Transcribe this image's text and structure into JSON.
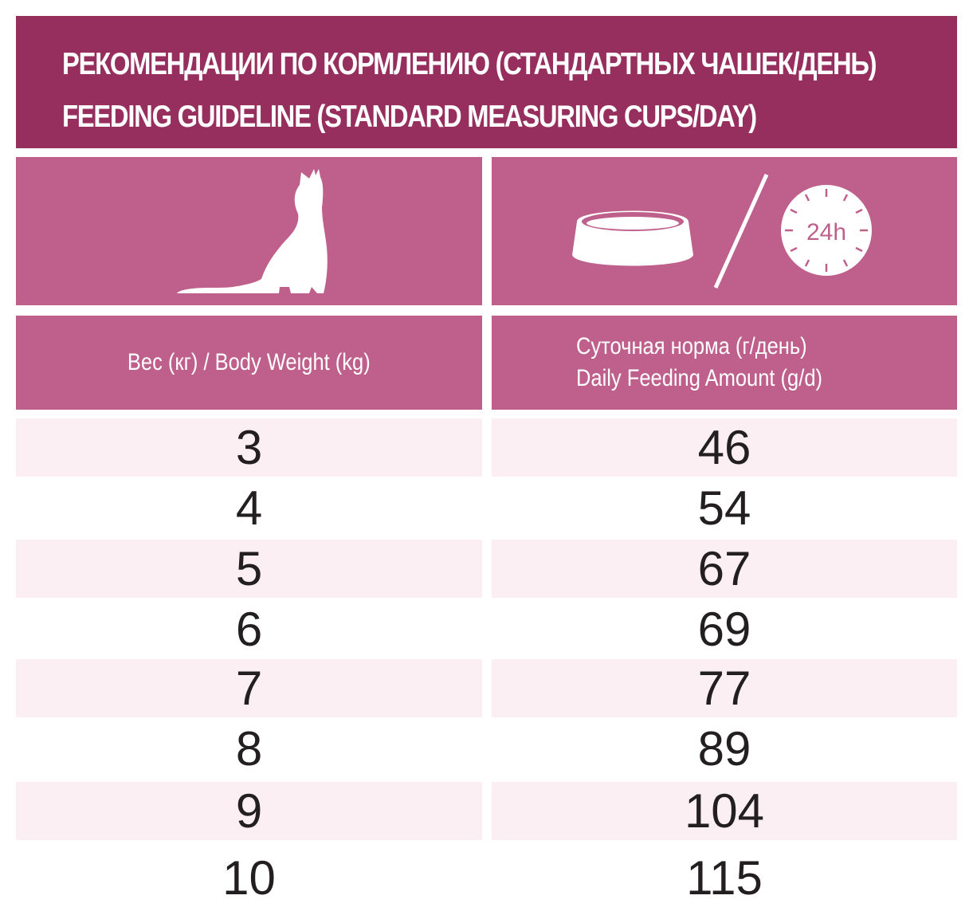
{
  "header": {
    "title_ru": "РЕКОМЕНДАЦИИ ПО КОРМЛЕНИЮ (СТАНДАРТНЫХ ЧАШЕК/ДЕНЬ)",
    "title_en": "FEEDING GUIDELINE (STANDARD MEASURING CUPS/DAY)"
  },
  "icons": {
    "weight_column": "cat-silhouette-icon",
    "amount_column": [
      "food-bowl-icon",
      "slash-icon",
      "clock-24h-icon"
    ],
    "clock_label": "24h"
  },
  "columns": {
    "weight_label": "Вес (кг) / Body Weight (kg)",
    "amount_label_ru": "Суточная норма (г/день)",
    "amount_label_en": "Daily Feeding Amount (g/d)"
  },
  "rows": [
    {
      "weight": "3",
      "amount": "46"
    },
    {
      "weight": "4",
      "amount": "54"
    },
    {
      "weight": "5",
      "amount": "67"
    },
    {
      "weight": "6",
      "amount": "69"
    },
    {
      "weight": "7",
      "amount": "77"
    },
    {
      "weight": "8",
      "amount": "89"
    },
    {
      "weight": "9",
      "amount": "104"
    },
    {
      "weight": "10",
      "amount": "115"
    }
  ],
  "colors": {
    "header_bg": "#962f5e",
    "column_header_bg": "#be608b",
    "shaded_row_bg": "#fbeff3",
    "value_text": "#231f20"
  }
}
